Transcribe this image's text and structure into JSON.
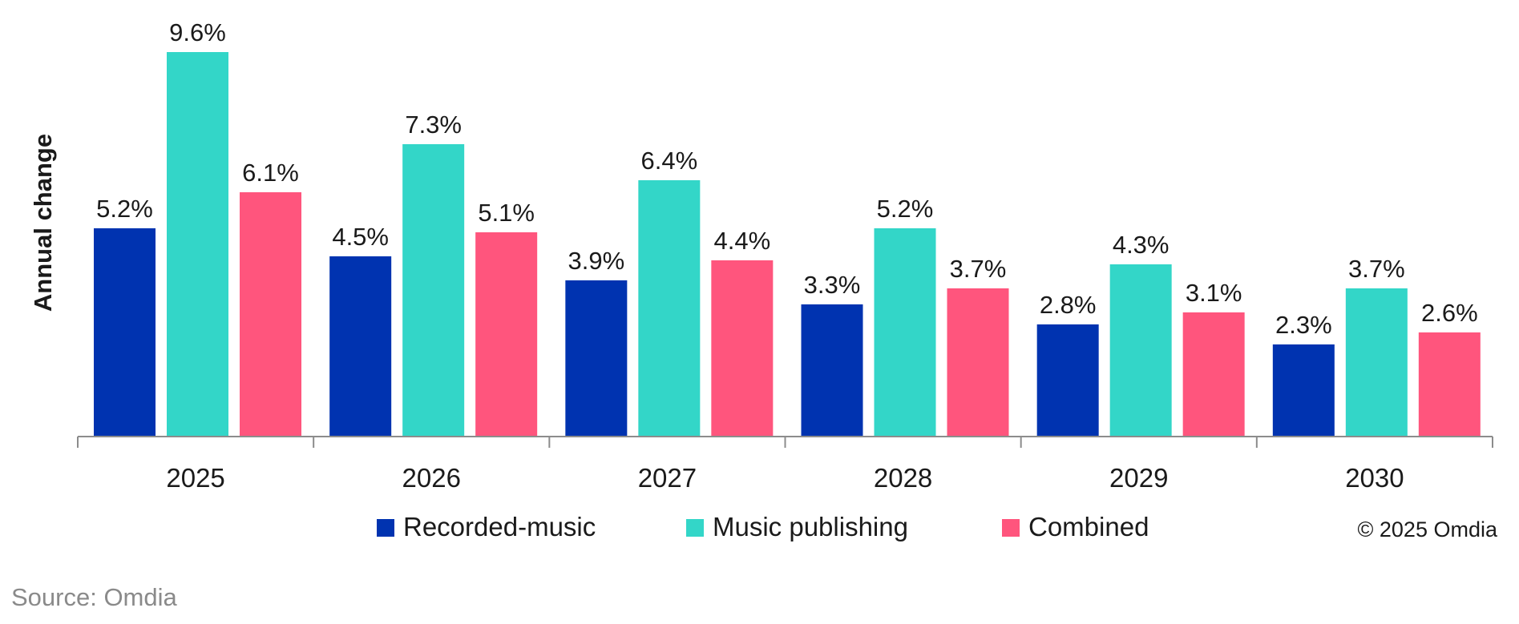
{
  "chart_data": {
    "type": "bar",
    "title": "",
    "xlabel": "",
    "ylabel": "Annual change",
    "categories": [
      "2025",
      "2026",
      "2027",
      "2028",
      "2029",
      "2030"
    ],
    "series": [
      {
        "name": "Recorded-music",
        "color": "#0033b0",
        "values": [
          5.2,
          4.5,
          3.9,
          3.3,
          2.8,
          2.3
        ],
        "labels": [
          "5.2%",
          "4.5%",
          "3.9%",
          "3.3%",
          "2.8%",
          "2.3%"
        ]
      },
      {
        "name": "Music publishing",
        "color": "#33d6c8",
        "values": [
          9.6,
          7.3,
          6.4,
          5.2,
          4.3,
          3.7
        ],
        "labels": [
          "9.6%",
          "7.3%",
          "6.4%",
          "5.2%",
          "4.3%",
          "3.7%"
        ]
      },
      {
        "name": "Combined",
        "color": "#ff557d",
        "values": [
          6.1,
          5.1,
          4.4,
          3.7,
          3.1,
          2.6
        ],
        "labels": [
          "6.1%",
          "5.1%",
          "4.4%",
          "3.7%",
          "3.1%",
          "2.6%"
        ]
      }
    ],
    "ylim": [
      0,
      10
    ],
    "grid": false,
    "legend_position": "bottom",
    "axis_color": "#8c8c8c"
  },
  "copyright": "© 2025 Omdia",
  "source": "Source: Omdia"
}
